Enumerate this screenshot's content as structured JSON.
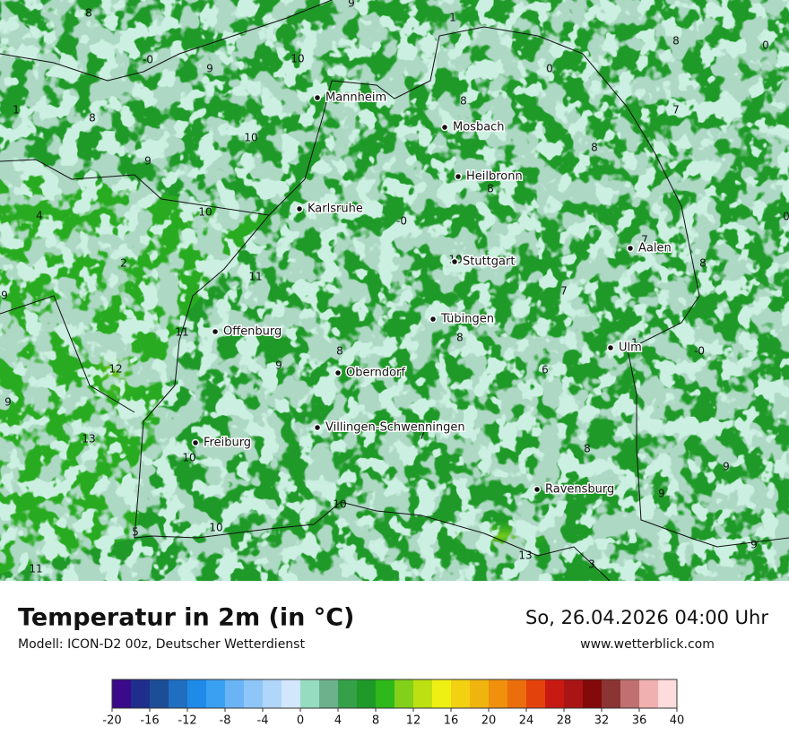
{
  "header": {
    "title": "Temperatur in 2m (in °C)",
    "subtitle": "Modell: ICON-D2 00z, Deutscher Wetterdienst",
    "datetime": "So, 26.04.2026 04:00 Uhr",
    "website": "www.wetterblick.com"
  },
  "cities": [
    "Mannheim",
    "Mosbach",
    "Heilbronn",
    "Karlsruhe",
    "Aalen",
    "Stuttgart",
    "Tübingen",
    "Offenburg",
    "Ulm",
    "Oberndorf",
    "Villingen-Schwenningen",
    "Freiburg",
    "Ravensburg"
  ],
  "map_labels": [
    "8",
    "9",
    "1",
    "8",
    "0",
    "-0",
    "9",
    "10",
    "0",
    "1",
    "8",
    "8",
    "7",
    "10",
    "8",
    "9",
    "8",
    "10",
    "-0",
    "4",
    "0",
    "2",
    "11",
    "8",
    "7",
    "9",
    "7",
    "11",
    "8",
    "8",
    "9",
    "1",
    "-0",
    "12",
    "6",
    "9",
    "7",
    "13",
    "10",
    "8",
    "9",
    "9",
    "10",
    "10",
    "5",
    "9",
    "13",
    "3",
    "11",
    "10"
  ],
  "colorbar": {
    "range": [
      -20,
      40
    ],
    "ticks": [
      -20,
      -16,
      -12,
      -8,
      -4,
      0,
      4,
      8,
      12,
      16,
      20,
      24,
      28,
      32,
      36,
      40
    ],
    "colors": [
      "#3a0a8a",
      "#1f2e8c",
      "#1b4e96",
      "#1f6ec0",
      "#1f8ae8",
      "#3aa0f2",
      "#6ab4f6",
      "#8ec6f8",
      "#b0d6fa",
      "#d2e6fc",
      "#96dcc0",
      "#6cb08c",
      "#35a04a",
      "#1f9a28",
      "#2eb81a",
      "#82d01a",
      "#bce012",
      "#eef014",
      "#f2d012",
      "#f0b40e",
      "#f0900c",
      "#ea6e0c",
      "#e4420c",
      "#c81a12",
      "#aa1414",
      "#820a0a",
      "#8c3434",
      "#c07070",
      "#f0b0b0",
      "#fcdcdc"
    ]
  }
}
